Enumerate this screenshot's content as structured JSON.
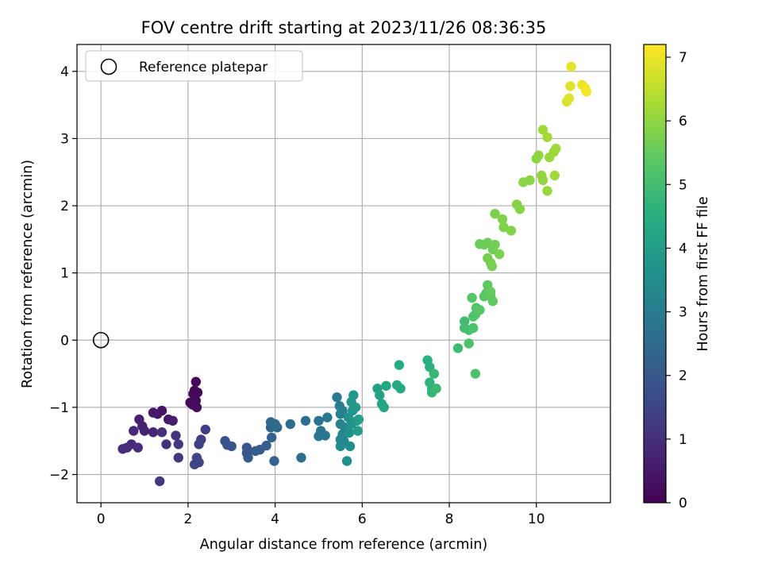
{
  "chart_data": {
    "type": "scatter",
    "title": "FOV centre drift starting at 2023/11/26 08:36:35",
    "xlabel": "Angular distance from reference (arcmin)",
    "ylabel": "Rotation from reference (arcmin)",
    "colorbar_label": "Hours from first FF file",
    "colormap": "viridis",
    "xlim": [
      -0.55,
      11.7
    ],
    "ylim": [
      -2.42,
      4.4
    ],
    "clim": [
      0,
      7.2
    ],
    "x_ticks": [
      0,
      2,
      4,
      6,
      8,
      10
    ],
    "y_ticks": [
      -2,
      -1,
      0,
      1,
      2,
      3,
      4
    ],
    "colorbar_ticks": [
      0,
      1,
      2,
      3,
      4,
      5,
      6,
      7
    ],
    "grid": true,
    "legend": {
      "position": "upper-left",
      "entries": [
        "Reference platepar"
      ]
    },
    "reference_point": {
      "x": 0,
      "y": 0
    },
    "series": [
      {
        "columns": [
          "x",
          "y",
          "hours"
        ],
        "points": [
          [
            2.18,
            -0.62,
            0.05
          ],
          [
            2.15,
            -0.75,
            0.08
          ],
          [
            2.22,
            -0.78,
            0.1
          ],
          [
            2.12,
            -0.8,
            0.12
          ],
          [
            2.05,
            -0.93,
            0.15
          ],
          [
            2.18,
            -0.9,
            0.18
          ],
          [
            2.2,
            -1.0,
            0.2
          ],
          [
            2.1,
            -0.96,
            0.22
          ],
          [
            1.4,
            -1.05,
            0.4
          ],
          [
            1.3,
            -1.1,
            0.45
          ],
          [
            1.2,
            -1.08,
            0.5
          ],
          [
            1.55,
            -1.18,
            0.55
          ],
          [
            1.65,
            -1.2,
            0.6
          ],
          [
            0.88,
            -1.18,
            0.65
          ],
          [
            0.95,
            -1.28,
            0.7
          ],
          [
            1.0,
            -1.35,
            0.72
          ],
          [
            1.2,
            -1.37,
            0.75
          ],
          [
            0.75,
            -1.35,
            0.8
          ],
          [
            0.7,
            -1.55,
            0.85
          ],
          [
            0.6,
            -1.6,
            0.9
          ],
          [
            0.5,
            -1.62,
            0.92
          ],
          [
            0.85,
            -1.6,
            0.95
          ],
          [
            1.4,
            -1.37,
            1.0
          ],
          [
            1.5,
            -1.55,
            1.05
          ],
          [
            1.72,
            -1.42,
            1.1
          ],
          [
            1.78,
            -1.55,
            1.15
          ],
          [
            1.78,
            -1.75,
            1.2
          ],
          [
            1.35,
            -2.1,
            1.25
          ],
          [
            2.4,
            -1.33,
            1.3
          ],
          [
            2.3,
            -1.48,
            1.35
          ],
          [
            2.25,
            -1.55,
            1.4
          ],
          [
            2.2,
            -1.75,
            1.45
          ],
          [
            2.25,
            -1.82,
            1.5
          ],
          [
            2.15,
            -1.85,
            1.55
          ],
          [
            2.85,
            -1.5,
            1.8
          ],
          [
            2.9,
            -1.56,
            1.85
          ],
          [
            3.0,
            -1.58,
            1.9
          ],
          [
            3.35,
            -1.6,
            1.95
          ],
          [
            3.35,
            -1.68,
            2.0
          ],
          [
            3.38,
            -1.75,
            2.05
          ],
          [
            3.55,
            -1.65,
            2.1
          ],
          [
            3.65,
            -1.63,
            2.15
          ],
          [
            3.8,
            -1.57,
            2.2
          ],
          [
            3.92,
            -1.45,
            2.25
          ],
          [
            3.98,
            -1.8,
            2.3
          ],
          [
            3.9,
            -1.3,
            2.35
          ],
          [
            3.9,
            -1.22,
            2.4
          ],
          [
            4.0,
            -1.25,
            2.45
          ],
          [
            4.05,
            -1.3,
            2.5
          ],
          [
            4.35,
            -1.25,
            2.55
          ],
          [
            4.6,
            -1.75,
            2.6
          ],
          [
            4.7,
            -1.2,
            2.65
          ],
          [
            5.0,
            -1.2,
            2.7
          ],
          [
            5.05,
            -1.35,
            2.75
          ],
          [
            5.0,
            -1.43,
            2.8
          ],
          [
            5.15,
            -1.42,
            2.85
          ],
          [
            5.2,
            -1.15,
            2.9
          ],
          [
            5.42,
            -0.85,
            3.0
          ],
          [
            5.48,
            -0.98,
            3.05
          ],
          [
            5.5,
            -1.1,
            3.1
          ],
          [
            5.55,
            -1.05,
            3.15
          ],
          [
            5.5,
            -1.25,
            3.2
          ],
          [
            5.6,
            -1.3,
            3.25
          ],
          [
            5.55,
            -1.4,
            3.3
          ],
          [
            5.5,
            -1.48,
            3.35
          ],
          [
            5.58,
            -1.5,
            3.4
          ],
          [
            5.5,
            -1.58,
            3.45
          ],
          [
            5.72,
            -1.58,
            3.5
          ],
          [
            5.65,
            -1.8,
            3.55
          ],
          [
            5.7,
            -1.38,
            3.6
          ],
          [
            5.75,
            -1.25,
            3.65
          ],
          [
            5.68,
            -1.15,
            3.7
          ],
          [
            5.78,
            -1.05,
            3.75
          ],
          [
            5.75,
            -0.92,
            3.8
          ],
          [
            5.8,
            -0.82,
            3.85
          ],
          [
            5.85,
            -1.0,
            3.9
          ],
          [
            5.88,
            -1.2,
            3.95
          ],
          [
            5.9,
            -1.35,
            4.0
          ],
          [
            5.92,
            -1.18,
            4.05
          ],
          [
            6.35,
            -0.72,
            4.1
          ],
          [
            6.4,
            -0.82,
            4.15
          ],
          [
            6.45,
            -0.95,
            4.2
          ],
          [
            6.5,
            -1.0,
            4.25
          ],
          [
            6.55,
            -0.68,
            4.3
          ],
          [
            6.8,
            -0.67,
            4.35
          ],
          [
            6.88,
            -0.72,
            4.4
          ],
          [
            6.85,
            -0.37,
            4.45
          ],
          [
            7.5,
            -0.3,
            4.55
          ],
          [
            7.55,
            -0.4,
            4.6
          ],
          [
            7.55,
            -0.63,
            4.65
          ],
          [
            7.6,
            -0.72,
            4.7
          ],
          [
            7.6,
            -0.78,
            4.75
          ],
          [
            7.65,
            -0.5,
            4.8
          ],
          [
            7.7,
            -0.72,
            4.85
          ],
          [
            8.2,
            -0.12,
            4.95
          ],
          [
            8.35,
            0.28,
            5.0
          ],
          [
            8.35,
            0.18,
            5.05
          ],
          [
            8.45,
            0.15,
            5.1
          ],
          [
            8.45,
            -0.05,
            5.12
          ],
          [
            8.55,
            0.18,
            5.15
          ],
          [
            8.6,
            -0.5,
            5.18
          ],
          [
            8.55,
            0.35,
            5.2
          ],
          [
            8.6,
            0.38,
            5.22
          ],
          [
            8.52,
            0.63,
            5.25
          ],
          [
            8.62,
            0.48,
            5.28
          ],
          [
            8.7,
            0.45,
            5.3
          ],
          [
            8.8,
            0.65,
            5.35
          ],
          [
            8.85,
            0.7,
            5.38
          ],
          [
            8.88,
            0.82,
            5.4
          ],
          [
            8.95,
            0.65,
            5.42
          ],
          [
            9.0,
            0.58,
            5.45
          ],
          [
            8.95,
            0.72,
            5.48
          ],
          [
            8.7,
            1.43,
            5.55
          ],
          [
            8.8,
            1.42,
            5.58
          ],
          [
            8.88,
            1.45,
            5.6
          ],
          [
            9.0,
            1.35,
            5.62
          ],
          [
            9.05,
            1.42,
            5.65
          ],
          [
            8.88,
            1.22,
            5.68
          ],
          [
            8.95,
            1.15,
            5.7
          ],
          [
            8.98,
            1.1,
            5.72
          ],
          [
            9.15,
            1.28,
            5.75
          ],
          [
            9.05,
            1.88,
            5.78
          ],
          [
            9.22,
            1.8,
            5.8
          ],
          [
            9.25,
            1.68,
            5.82
          ],
          [
            9.42,
            1.63,
            5.85
          ],
          [
            9.55,
            2.02,
            5.88
          ],
          [
            9.62,
            1.95,
            5.9
          ],
          [
            9.7,
            2.35,
            5.92
          ],
          [
            9.85,
            2.38,
            5.95
          ],
          [
            10.0,
            2.7,
            5.98
          ],
          [
            10.05,
            2.75,
            6.0
          ],
          [
            10.12,
            2.45,
            6.02
          ],
          [
            10.15,
            2.38,
            6.05
          ],
          [
            10.25,
            2.22,
            6.08
          ],
          [
            10.3,
            2.72,
            6.1
          ],
          [
            10.4,
            2.8,
            6.12
          ],
          [
            10.45,
            2.85,
            6.15
          ],
          [
            10.42,
            2.45,
            6.18
          ],
          [
            10.15,
            3.13,
            6.2
          ],
          [
            10.25,
            3.02,
            6.22
          ],
          [
            10.7,
            3.55,
            6.8
          ],
          [
            10.75,
            3.6,
            6.85
          ],
          [
            10.78,
            3.78,
            6.9
          ],
          [
            10.8,
            4.07,
            6.95
          ],
          [
            11.05,
            3.8,
            7.0
          ],
          [
            11.12,
            3.75,
            7.05
          ],
          [
            11.15,
            3.7,
            7.1
          ]
        ]
      }
    ]
  }
}
